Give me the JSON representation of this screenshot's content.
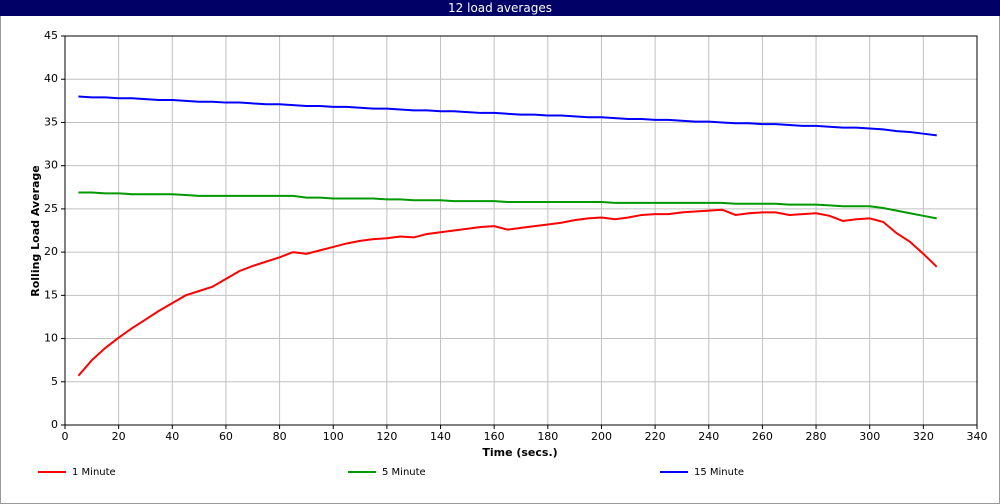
{
  "chart_data": {
    "type": "line",
    "title": "12 load averages",
    "x_label": "Time (secs.)",
    "y_label": "Rolling Load Average",
    "x": [
      5,
      10,
      15,
      20,
      25,
      30,
      35,
      40,
      45,
      50,
      55,
      60,
      65,
      70,
      75,
      80,
      85,
      90,
      95,
      100,
      105,
      110,
      115,
      120,
      125,
      130,
      135,
      140,
      145,
      150,
      155,
      160,
      165,
      170,
      175,
      180,
      185,
      190,
      195,
      200,
      205,
      210,
      215,
      220,
      225,
      230,
      235,
      240,
      245,
      250,
      255,
      260,
      265,
      270,
      275,
      280,
      285,
      290,
      295,
      300,
      305,
      310,
      315,
      320,
      325
    ],
    "series": [
      {
        "name": "1 Minute",
        "color": "#ff0000",
        "values": [
          5.7,
          7.5,
          8.9,
          10.1,
          11.2,
          12.2,
          13.2,
          14.1,
          15.0,
          15.5,
          16.0,
          16.9,
          17.8,
          18.4,
          18.9,
          19.4,
          20.0,
          19.8,
          20.2,
          20.6,
          21.0,
          21.3,
          21.5,
          21.6,
          21.8,
          21.7,
          22.1,
          22.3,
          22.5,
          22.7,
          22.9,
          23.0,
          22.6,
          22.8,
          23.0,
          23.2,
          23.4,
          23.7,
          23.9,
          24.0,
          23.8,
          24.0,
          24.3,
          24.4,
          24.4,
          24.6,
          24.7,
          24.8,
          24.9,
          24.3,
          24.5,
          24.6,
          24.6,
          24.3,
          24.4,
          24.5,
          24.2,
          23.6,
          23.8,
          23.9,
          23.5,
          22.2,
          21.2,
          19.8,
          18.3
        ]
      },
      {
        "name": "5 Minute",
        "color": "#009900",
        "values": [
          26.9,
          26.9,
          26.8,
          26.8,
          26.7,
          26.7,
          26.7,
          26.7,
          26.6,
          26.5,
          26.5,
          26.5,
          26.5,
          26.5,
          26.5,
          26.5,
          26.5,
          26.3,
          26.3,
          26.2,
          26.2,
          26.2,
          26.2,
          26.1,
          26.1,
          26.0,
          26.0,
          26.0,
          25.9,
          25.9,
          25.9,
          25.9,
          25.8,
          25.8,
          25.8,
          25.8,
          25.8,
          25.8,
          25.8,
          25.8,
          25.7,
          25.7,
          25.7,
          25.7,
          25.7,
          25.7,
          25.7,
          25.7,
          25.7,
          25.6,
          25.6,
          25.6,
          25.6,
          25.5,
          25.5,
          25.5,
          25.4,
          25.3,
          25.3,
          25.3,
          25.1,
          24.8,
          24.5,
          24.2,
          23.9
        ]
      },
      {
        "name": "15 Minute",
        "color": "#0000ff",
        "values": [
          38.0,
          37.9,
          37.9,
          37.8,
          37.8,
          37.7,
          37.6,
          37.6,
          37.5,
          37.4,
          37.4,
          37.3,
          37.3,
          37.2,
          37.1,
          37.1,
          37.0,
          36.9,
          36.9,
          36.8,
          36.8,
          36.7,
          36.6,
          36.6,
          36.5,
          36.4,
          36.4,
          36.3,
          36.3,
          36.2,
          36.1,
          36.1,
          36.0,
          35.9,
          35.9,
          35.8,
          35.8,
          35.7,
          35.6,
          35.6,
          35.5,
          35.4,
          35.4,
          35.3,
          35.3,
          35.2,
          35.1,
          35.1,
          35.0,
          34.9,
          34.9,
          34.8,
          34.8,
          34.7,
          34.6,
          34.6,
          34.5,
          34.4,
          34.4,
          34.3,
          34.2,
          34.0,
          33.9,
          33.7,
          33.5
        ]
      }
    ],
    "xlim": [
      0,
      340
    ],
    "xticks": [
      0,
      20,
      40,
      60,
      80,
      100,
      120,
      140,
      160,
      180,
      200,
      220,
      240,
      260,
      280,
      300,
      320,
      340
    ],
    "ylim": [
      0,
      45
    ],
    "yticks": [
      0,
      5,
      10,
      15,
      20,
      25,
      30,
      35,
      40,
      45
    ],
    "grid": true,
    "legend": "bottom"
  }
}
